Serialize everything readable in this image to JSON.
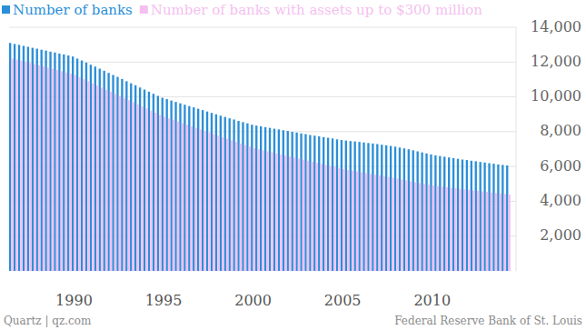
{
  "chart_data": {
    "type": "bar",
    "categories": [
      null,
      null,
      null,
      null,
      null,
      null,
      null,
      null,
      null,
      null,
      null,
      null,
      null,
      null,
      "1990",
      null,
      null,
      null,
      null,
      null,
      null,
      null,
      null,
      null,
      null,
      null,
      null,
      null,
      null,
      null,
      null,
      null,
      null,
      null,
      "1995",
      null,
      null,
      null,
      null,
      null,
      null,
      null,
      null,
      null,
      null,
      null,
      null,
      null,
      null,
      null,
      null,
      null,
      null,
      null,
      "2000",
      null,
      null,
      null,
      null,
      null,
      null,
      null,
      null,
      null,
      null,
      null,
      null,
      null,
      null,
      null,
      null,
      null,
      null,
      null,
      "2005",
      null,
      null,
      null,
      null,
      null,
      null,
      null,
      null,
      null,
      null,
      null,
      null,
      null,
      null,
      null,
      null,
      null,
      null,
      null,
      "2010",
      null,
      null,
      null,
      null,
      null,
      null,
      null,
      null,
      null,
      null,
      null,
      null,
      null,
      null,
      null,
      null,
      null
    ],
    "series": [
      {
        "name": "Number of banks",
        "color": "#2a8fd8",
        "values": [
          13100,
          13040,
          12990,
          12930,
          12880,
          12820,
          12770,
          12710,
          12660,
          12600,
          12550,
          12490,
          12440,
          12380,
          12320,
          12200,
          12090,
          11970,
          11850,
          11740,
          11620,
          11500,
          11380,
          11260,
          11150,
          11030,
          10900,
          10780,
          10670,
          10540,
          10420,
          10300,
          10180,
          10060,
          9950,
          9870,
          9790,
          9710,
          9630,
          9550,
          9470,
          9400,
          9320,
          9240,
          9160,
          9080,
          9000,
          8920,
          8850,
          8770,
          8700,
          8620,
          8550,
          8480,
          8400,
          8350,
          8310,
          8260,
          8220,
          8170,
          8130,
          8080,
          8040,
          7990,
          7950,
          7900,
          7860,
          7810,
          7770,
          7730,
          7690,
          7650,
          7610,
          7560,
          7520,
          7490,
          7460,
          7440,
          7410,
          7380,
          7350,
          7320,
          7290,
          7250,
          7220,
          7180,
          7140,
          7090,
          7040,
          6990,
          6930,
          6870,
          6810,
          6750,
          6690,
          6640,
          6600,
          6560,
          6520,
          6480,
          6440,
          6400,
          6370,
          6330,
          6300,
          6260,
          6230,
          6190,
          6160,
          6120,
          6090,
          6060
        ]
      },
      {
        "name": "Number of banks with assets up to $300 million",
        "color": "#f5bff0",
        "values": [
          12200,
          12140,
          12080,
          12010,
          11950,
          11880,
          11820,
          11750,
          11680,
          11610,
          11540,
          11470,
          11400,
          11330,
          11250,
          11130,
          11010,
          10890,
          10770,
          10650,
          10530,
          10410,
          10290,
          10170,
          10050,
          9930,
          9810,
          9690,
          9570,
          9450,
          9330,
          9210,
          9090,
          8970,
          8850,
          8760,
          8670,
          8580,
          8490,
          8400,
          8310,
          8220,
          8130,
          8040,
          7950,
          7860,
          7770,
          7680,
          7590,
          7500,
          7410,
          7320,
          7230,
          7140,
          7050,
          6990,
          6930,
          6870,
          6810,
          6750,
          6690,
          6630,
          6570,
          6510,
          6450,
          6390,
          6330,
          6270,
          6210,
          6150,
          6090,
          6030,
          5970,
          5910,
          5850,
          5800,
          5760,
          5710,
          5670,
          5620,
          5580,
          5530,
          5490,
          5440,
          5400,
          5350,
          5300,
          5250,
          5200,
          5150,
          5100,
          5050,
          5000,
          4950,
          4900,
          4870,
          4840,
          4810,
          4780,
          4750,
          4720,
          4690,
          4660,
          4630,
          4600,
          4570,
          4540,
          4510,
          4480,
          4450,
          4420,
          4400
        ]
      }
    ],
    "ylim": [
      0,
      14000
    ],
    "yticks": [
      {
        "value": 2000,
        "label": "2,000"
      },
      {
        "value": 4000,
        "label": "4,000"
      },
      {
        "value": 6000,
        "label": "6,000"
      },
      {
        "value": 8000,
        "label": "8,000"
      },
      {
        "value": 10000,
        "label": "10,000"
      },
      {
        "value": 12000,
        "label": "12,000"
      },
      {
        "value": 14000,
        "label": "14,000"
      }
    ],
    "grid": true,
    "legend": "top-left",
    "credit": "Quartz | qz.com",
    "source": "Federal Reserve Bank of St. Louis"
  }
}
